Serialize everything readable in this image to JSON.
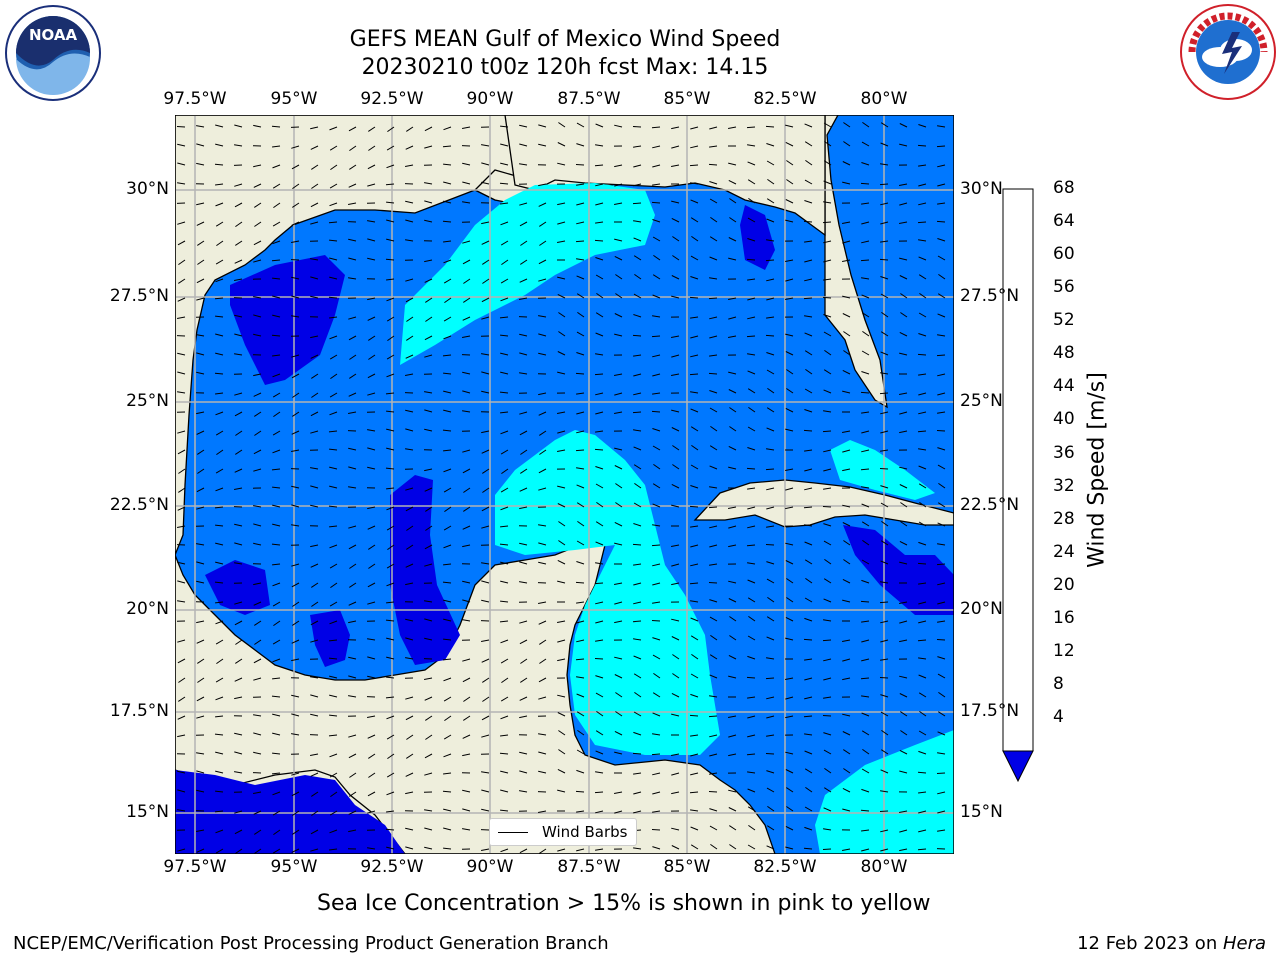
{
  "title": {
    "line1": "GEFS MEAN Gulf of Mexico Wind Speed",
    "line2": "20230210 t00z 120h fcst   Max: 14.15"
  },
  "logos": [
    {
      "name": "noaa-logo",
      "text": "NOAA",
      "ring_text": "NATIONAL OCEANIC AND ATMOSPHERIC ADMINISTRATION · U.S. DEPARTMENT OF COMMERCE"
    },
    {
      "name": "nws-logo",
      "ring_text": "NATIONAL WEATHER SERVICE"
    }
  ],
  "map": {
    "lon_labels": [
      "97.5°W",
      "95°W",
      "92.5°W",
      "90°W",
      "87.5°W",
      "85°W",
      "82.5°W",
      "80°W"
    ],
    "lat_labels": [
      "30°N",
      "27.5°N",
      "25°N",
      "22.5°N",
      "20°N",
      "17.5°N",
      "15°N"
    ],
    "legend_label": "Wind Barbs",
    "colors": {
      "land": "#eeeedc",
      "grid": "#b4b4b4",
      "coast": "#000000"
    }
  },
  "colorbar": {
    "label": "Wind Speed [m/s]",
    "ticks": [
      "68",
      "64",
      "60",
      "56",
      "52",
      "48",
      "44",
      "40",
      "36",
      "32",
      "28",
      "24",
      "20",
      "16",
      "12",
      "8",
      "4"
    ],
    "colors": [
      "#0000e6",
      "#0078ff",
      "#00ffff",
      "#40ffff",
      "#96ffff",
      "#55ff78",
      "#00e600",
      "#46e600",
      "#96e600",
      "#c8ff00",
      "#e6ff00",
      "#ffff00",
      "#ffe600",
      "#ffb400",
      "#ff8c00",
      "#ff5000",
      "#ff2800",
      "#ff0000"
    ]
  },
  "footer": {
    "sea_ice": "Sea Ice Concentration > 15% is shown in pink to yellow",
    "credit": "NCEP/EMC/Verification Post Processing Product Generation Branch",
    "date": "12 Feb 2023 on ",
    "machine": "Hera"
  }
}
